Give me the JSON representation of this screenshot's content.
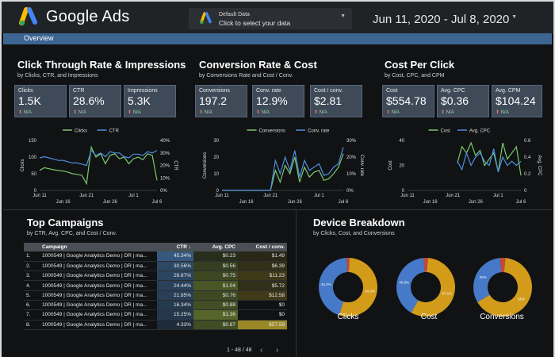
{
  "header": {
    "brand": "Google Ads",
    "data_source": {
      "caption": "Default Data",
      "action": "Click to select your data"
    },
    "date_range": "Jun 11, 2020 - Jul 8, 2020"
  },
  "tabs": [
    "Overview"
  ],
  "sections": {
    "ctr": {
      "title": "Click Through Rate & Impressions",
      "subtitle": "by Clicks, CTR, and Impressions",
      "kpis": [
        {
          "label": "Clicks",
          "value": "1.5K",
          "delta": "N/A"
        },
        {
          "label": "CTR",
          "value": "28.6%",
          "delta": "N/A"
        },
        {
          "label": "Impressions",
          "value": "5.3K",
          "delta": "N/A"
        }
      ]
    },
    "conv": {
      "title": "Conversion Rate & Cost",
      "subtitle": "by Conversions Rate and Cost / Conv.",
      "kpis": [
        {
          "label": "Conversions",
          "value": "197.2",
          "delta": "N/A"
        },
        {
          "label": "Conv. rate",
          "value": "12.9%",
          "delta": "N/A"
        },
        {
          "label": "Cost / conv.",
          "value": "$2.81",
          "delta": "N/A"
        }
      ]
    },
    "cpc": {
      "title": "Cost Per Click",
      "subtitle": "by Cost, CPC, and CPM",
      "kpis": [
        {
          "label": "Cost",
          "value": "$554.78",
          "delta": "N/A"
        },
        {
          "label": "Avg. CPC",
          "value": "$0.36",
          "delta": "N/A"
        },
        {
          "label": "Avg. CPM",
          "value": "$104.24",
          "delta": "N/A"
        }
      ]
    },
    "campaigns": {
      "title": "Top Campaigns",
      "subtitle": "by CTR, Avg. CPC, and Cost / Conv.",
      "columns": [
        "Campaign",
        "CTR",
        "Avg. CPC",
        "Cost / conv."
      ],
      "sort_indicator": "↓",
      "rows": [
        {
          "n": "1.",
          "campaign": "1000549 | Google Analytics Demo | DR | ma...",
          "ctr": "45.34%",
          "cpc": "$0.23",
          "cost": "$1.49"
        },
        {
          "n": "2.",
          "campaign": "1000549 | Google Analytics Demo | DR | ma...",
          "ctr": "30.56%",
          "cpc": "$0.56",
          "cost": "$6.39"
        },
        {
          "n": "3.",
          "campaign": "1000549 | Google Analytics Demo | DR | ma...",
          "ctr": "26.87%",
          "cpc": "$0.75",
          "cost": "$11.23"
        },
        {
          "n": "4.",
          "campaign": "1000549 | Google Analytics Demo | DR | ma...",
          "ctr": "24.44%",
          "cpc": "$1.04",
          "cost": "$5.72"
        },
        {
          "n": "5.",
          "campaign": "1000549 | Google Analytics Demo | DR | ma...",
          "ctr": "21.85%",
          "cpc": "$0.76",
          "cost": "$12.58"
        },
        {
          "n": "6.",
          "campaign": "1000549 | Google Analytics Demo | DR | ma...",
          "ctr": "16.34%",
          "cpc": "$0.88",
          "cost": "$0"
        },
        {
          "n": "7.",
          "campaign": "1000549 | Google Analytics Demo | DR | ma...",
          "ctr": "15.25%",
          "cpc": "$1.36",
          "cost": "$0"
        },
        {
          "n": "8.",
          "campaign": "1000549 | Google Analytics Demo | DR | ma...",
          "ctr": "4.33%",
          "cpc": "$0.87",
          "cost": "$57.59"
        }
      ],
      "pager": "1 - 48 / 48"
    },
    "device": {
      "title": "Device Breakdown",
      "subtitle": "by Clicks, Cost, and Conversions"
    }
  },
  "colors": {
    "green": "#7cc96b",
    "blue": "#4d8fde",
    "donut_blue": "#4679c8",
    "donut_gold": "#d39b1a",
    "donut_red": "#c4473a",
    "accent_bar": "#3d6591"
  },
  "chart_data": [
    {
      "type": "line",
      "x": [
        "Jun 11",
        "Jun 12",
        "Jun 13",
        "Jun 14",
        "Jun 15",
        "Jun 16",
        "Jun 17",
        "Jun 18",
        "Jun 19",
        "Jun 20",
        "Jun 21",
        "Jun 22",
        "Jun 23",
        "Jun 24",
        "Jun 25",
        "Jun 26",
        "Jun 27",
        "Jun 28",
        "Jun 29",
        "Jun 30",
        "Jul 1",
        "Jul 2",
        "Jul 3",
        "Jul 4",
        "Jul 5",
        "Jul 6"
      ],
      "xticks": [
        "Jun 11",
        "Jun 16",
        "Jun 21",
        "Jun 26",
        "Jul 1",
        "Jul 6"
      ],
      "series": [
        {
          "name": "Clicks",
          "axis": "left",
          "values": [
            60,
            68,
            65,
            62,
            60,
            58,
            55,
            50,
            48,
            45,
            20,
            130,
            100,
            110,
            80,
            105,
            110,
            95,
            100,
            80,
            95,
            100,
            92,
            110,
            105,
            30
          ]
        },
        {
          "name": "CTR",
          "axis": "right",
          "values": [
            26,
            27,
            26,
            25,
            24,
            24,
            23,
            22,
            22,
            21,
            20,
            32,
            28,
            30,
            27,
            31,
            30,
            30,
            27,
            26,
            29,
            29,
            28,
            31,
            30,
            32
          ]
        }
      ],
      "ylabel": "Clicks",
      "ylabel_right": "CTR",
      "ylim": [
        0,
        150
      ],
      "yticks": [
        "0",
        "50",
        "100",
        "150"
      ],
      "ylim_right": [
        0,
        40
      ],
      "yticks_right": [
        "0%",
        "10%",
        "20%",
        "30%",
        "40%"
      ],
      "legend": "top"
    },
    {
      "type": "line",
      "x": [
        "Jun 11",
        "Jun 12",
        "Jun 13",
        "Jun 14",
        "Jun 15",
        "Jun 16",
        "Jun 17",
        "Jun 18",
        "Jun 19",
        "Jun 20",
        "Jun 21",
        "Jun 22",
        "Jun 23",
        "Jun 24",
        "Jun 25",
        "Jun 26",
        "Jun 27",
        "Jun 28",
        "Jun 29",
        "Jun 30",
        "Jul 1",
        "Jul 2",
        "Jul 3",
        "Jul 4",
        "Jul 5",
        "Jul 6"
      ],
      "xticks": [
        "Jun 11",
        "Jun 16",
        "Jun 21",
        "Jun 26",
        "Jul 1",
        "Jul 6"
      ],
      "series": [
        {
          "name": "Conversions",
          "axis": "left",
          "values": [
            0,
            0,
            0,
            0,
            0,
            0,
            0,
            0,
            0,
            0,
            0,
            12,
            5,
            15,
            10,
            20,
            5,
            14,
            8,
            11,
            12,
            6,
            7,
            10,
            14,
            22
          ]
        },
        {
          "name": "Conv. rate",
          "axis": "right",
          "values": [
            0,
            0,
            0,
            0,
            0,
            0,
            0,
            0,
            0,
            0,
            0,
            18,
            10,
            20,
            12,
            24,
            8,
            18,
            12,
            14,
            16,
            9,
            10,
            14,
            16,
            26
          ]
        }
      ],
      "ylabel": "Conversions",
      "ylabel_right": "Conv. rate",
      "ylim": [
        0,
        30
      ],
      "yticks": [
        "0",
        "10",
        "20",
        "30"
      ],
      "ylim_right": [
        0,
        30
      ],
      "yticks_right": [
        "0%",
        "10%",
        "20%",
        "30%"
      ],
      "legend": "top"
    },
    {
      "type": "line",
      "x": [
        "Jun 11",
        "Jun 12",
        "Jun 13",
        "Jun 14",
        "Jun 15",
        "Jun 16",
        "Jun 17",
        "Jun 18",
        "Jun 19",
        "Jun 20",
        "Jun 21",
        "Jun 22",
        "Jun 23",
        "Jun 24",
        "Jun 25",
        "Jun 26",
        "Jun 27",
        "Jun 28",
        "Jun 29",
        "Jun 30",
        "Jul 1",
        "Jul 2",
        "Jul 3",
        "Jul 4",
        "Jul 5",
        "Jul 6"
      ],
      "xticks": [
        "Jun 11",
        "Jun 16",
        "Jun 21",
        "Jun 26",
        "Jul 1",
        "Jul 6"
      ],
      "series": [
        {
          "name": "Cost",
          "axis": "left",
          "values": [
            null,
            null,
            null,
            null,
            null,
            null,
            null,
            null,
            null,
            null,
            null,
            22,
            35,
            30,
            38,
            28,
            32,
            20,
            25,
            30,
            15,
            38,
            25,
            30,
            35,
            12
          ]
        },
        {
          "name": "Avg. CPC",
          "axis": "right",
          "values": [
            null,
            null,
            null,
            null,
            null,
            null,
            null,
            null,
            null,
            null,
            null,
            0.35,
            0.25,
            0.45,
            0.3,
            0.4,
            0.45,
            0.35,
            0.3,
            0.5,
            0.22,
            0.4,
            0.3,
            0.35,
            0.3,
            0.35
          ]
        }
      ],
      "ylabel": "Cost",
      "ylabel_right": "Avg. CPC",
      "ylim": [
        0,
        40
      ],
      "yticks": [
        "0",
        "20",
        "40"
      ],
      "ylim_right": [
        0,
        0.6
      ],
      "yticks_right": [
        "0",
        "0.2",
        "0.4",
        "0.6"
      ],
      "legend": "top"
    },
    {
      "type": "pie",
      "title": "Clicks",
      "slices": [
        {
          "label": "blue",
          "value": 44.2
        },
        {
          "label": "gold",
          "value": 54.2
        },
        {
          "label": "red",
          "value": 1.6
        }
      ],
      "labels": [
        "44.2%",
        "54.2%"
      ]
    },
    {
      "type": "pie",
      "title": "Cost",
      "slices": [
        {
          "label": "blue",
          "value": 40.5
        },
        {
          "label": "gold",
          "value": 57.1
        },
        {
          "label": "red",
          "value": 2.4
        }
      ],
      "labels": [
        "40.5%",
        "57.1%"
      ]
    },
    {
      "type": "pie",
      "title": "Conversions",
      "slices": [
        {
          "label": "blue",
          "value": 32
        },
        {
          "label": "gold",
          "value": 65
        },
        {
          "label": "red",
          "value": 3
        }
      ],
      "labels": [
        "32%",
        "65%"
      ]
    }
  ]
}
